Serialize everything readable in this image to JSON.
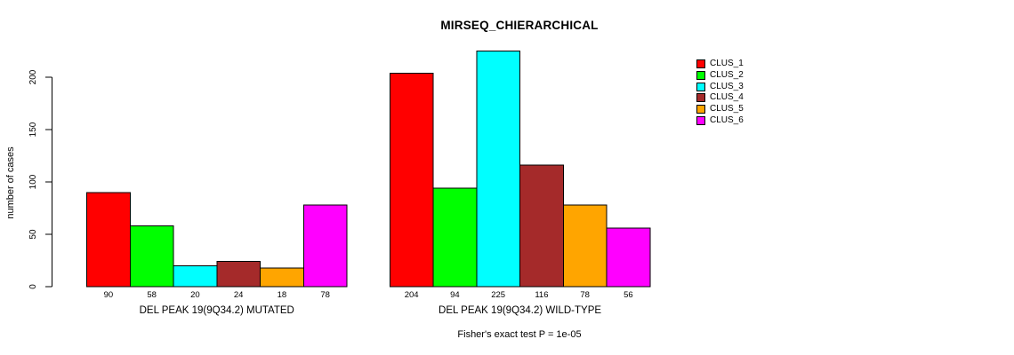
{
  "chart_data": {
    "type": "bar",
    "title": "MIRSEQ_CHIERARCHICAL",
    "xlabel": "",
    "ylabel": "number of cases",
    "ylim": [
      0,
      225
    ],
    "yticks": [
      0,
      50,
      100,
      150,
      200
    ],
    "grid": false,
    "legend_position": "right",
    "bar_value_labels_shown": true,
    "annotation": "Fisher's exact test P = 1e-05",
    "clusters": [
      "CLUS_1",
      "CLUS_2",
      "CLUS_3",
      "CLUS_4",
      "CLUS_5",
      "CLUS_6"
    ],
    "colors": [
      "#FF0000",
      "#00FF00",
      "#00FFFF",
      "#A52A2A",
      "#FFA500",
      "#FF00FF"
    ],
    "groups": [
      {
        "label": "DEL PEAK 19(9Q34.2) MUTATED",
        "values": [
          90,
          58,
          20,
          24,
          18,
          78
        ]
      },
      {
        "label": "DEL PEAK 19(9Q34.2) WILD-TYPE",
        "values": [
          204,
          94,
          225,
          116,
          78,
          56
        ]
      }
    ]
  },
  "colors_meta": {
    "background": "#FFFFFF",
    "axis": "#000000",
    "bar_border": "#000000",
    "text": "#000000"
  }
}
